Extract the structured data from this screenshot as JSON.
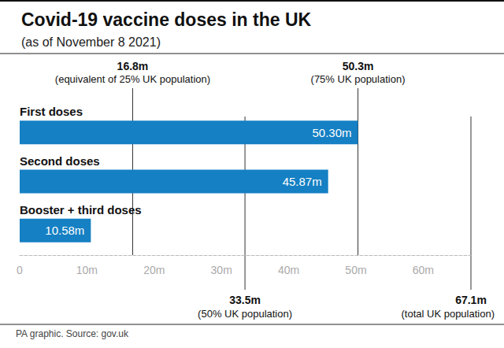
{
  "chart_data": {
    "type": "bar",
    "orientation": "horizontal",
    "title": "Covid-19 vaccine doses in the UK",
    "subtitle": "(as of November 8 2021)",
    "categories": [
      "First doses",
      "Second doses",
      "Booster + third doses"
    ],
    "values": [
      50.3,
      45.87,
      10.58
    ],
    "value_labels": [
      "50.30m",
      "45.87m",
      "10.58m"
    ],
    "data_labels": true,
    "color": "#1580c3",
    "xlim": [
      0,
      67.1
    ],
    "xticks": [
      0,
      {
        "value": 10,
        "label": "10m"
      },
      {
        "value": 20,
        "label": "20m"
      },
      {
        "value": 30,
        "label": "30m"
      },
      {
        "value": 40,
        "label": "40m"
      },
      {
        "value": 50,
        "label": "50m"
      },
      {
        "value": 60,
        "label": "60m"
      }
    ],
    "grid": false,
    "reference_lines_top": [
      {
        "value": 16.8,
        "label": "16.8m",
        "note": "(equivalent of 25% UK population)"
      },
      {
        "value": 50.3,
        "label": "50.3m",
        "note": "(75% UK population)"
      }
    ],
    "reference_lines_bottom": [
      {
        "value": 33.5,
        "label": "33.5m",
        "note": "(50% UK population)"
      },
      {
        "value": 67.1,
        "label": "67.1m",
        "note": "(total UK population)"
      }
    ],
    "source": "PA graphic. Source: gov.uk"
  }
}
